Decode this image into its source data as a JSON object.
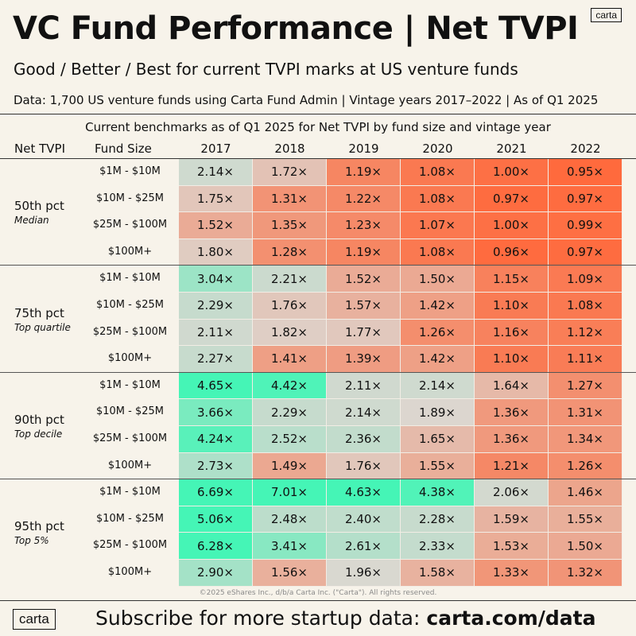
{
  "brand": {
    "logo_text": "carta"
  },
  "header": {
    "title": "VC Fund Performance | Net TVPI",
    "subtitle": "Good / Better / Best for current TVPI marks at US venture funds",
    "source": "Data: 1,700 US venture funds using Carta Fund Admin  |  Vintage years 2017–2022  |  As of Q1 2025"
  },
  "chart_data": {
    "type": "table",
    "title": "Current benchmarks as of Q1 2025 for Net TVPI by fund size and vintage year",
    "columns": {
      "net_tvpi": "Net TVPI",
      "fund_size": "Fund Size"
    },
    "years": [
      "2017",
      "2018",
      "2019",
      "2020",
      "2021",
      "2022"
    ],
    "fund_sizes": [
      "$1M - $10M",
      "$10M - $25M",
      "$25M - $100M",
      "$100M+"
    ],
    "color_scale": {
      "low": "#ff6a3d",
      "mid": "#dcd7d1",
      "high": "#45f5b6"
    },
    "sections": [
      {
        "label": "50th pct",
        "description": "Median",
        "rows": [
          {
            "fund_size": "$1M - $10M",
            "values": [
              "2.14×",
              "1.72×",
              "1.19×",
              "1.08×",
              "1.00×",
              "0.95×"
            ]
          },
          {
            "fund_size": "$10M - $25M",
            "values": [
              "1.75×",
              "1.31×",
              "1.22×",
              "1.08×",
              "0.97×",
              "0.97×"
            ]
          },
          {
            "fund_size": "$25M - $100M",
            "values": [
              "1.52×",
              "1.35×",
              "1.23×",
              "1.07×",
              "1.00×",
              "0.99×"
            ]
          },
          {
            "fund_size": "$100M+",
            "values": [
              "1.80×",
              "1.28×",
              "1.19×",
              "1.08×",
              "0.96×",
              "0.97×"
            ]
          }
        ]
      },
      {
        "label": "75th pct",
        "description": "Top quartile",
        "rows": [
          {
            "fund_size": "$1M - $10M",
            "values": [
              "3.04×",
              "2.21×",
              "1.52×",
              "1.50×",
              "1.15×",
              "1.09×"
            ]
          },
          {
            "fund_size": "$10M - $25M",
            "values": [
              "2.29×",
              "1.76×",
              "1.57×",
              "1.42×",
              "1.10×",
              "1.08×"
            ]
          },
          {
            "fund_size": "$25M - $100M",
            "values": [
              "2.11×",
              "1.82×",
              "1.77×",
              "1.26×",
              "1.16×",
              "1.12×"
            ]
          },
          {
            "fund_size": "$100M+",
            "values": [
              "2.27×",
              "1.41×",
              "1.39×",
              "1.42×",
              "1.10×",
              "1.11×"
            ]
          }
        ]
      },
      {
        "label": "90th pct",
        "description": "Top decile",
        "rows": [
          {
            "fund_size": "$1M - $10M",
            "values": [
              "4.65×",
              "4.42×",
              "2.11×",
              "2.14×",
              "1.64×",
              "1.27×"
            ]
          },
          {
            "fund_size": "$10M - $25M",
            "values": [
              "3.66×",
              "2.29×",
              "2.14×",
              "1.89×",
              "1.36×",
              "1.31×"
            ]
          },
          {
            "fund_size": "$25M - $100M",
            "values": [
              "4.24×",
              "2.52×",
              "2.36×",
              "1.65×",
              "1.36×",
              "1.34×"
            ]
          },
          {
            "fund_size": "$100M+",
            "values": [
              "2.73×",
              "1.49×",
              "1.76×",
              "1.55×",
              "1.21×",
              "1.26×"
            ]
          }
        ]
      },
      {
        "label": "95th pct",
        "description": "Top 5%",
        "rows": [
          {
            "fund_size": "$1M - $10M",
            "values": [
              "6.69×",
              "7.01×",
              "4.63×",
              "4.38×",
              "2.06×",
              "1.46×"
            ]
          },
          {
            "fund_size": "$10M - $25M",
            "values": [
              "5.06×",
              "2.48×",
              "2.40×",
              "2.28×",
              "1.59×",
              "1.55×"
            ]
          },
          {
            "fund_size": "$25M - $100M",
            "values": [
              "6.28×",
              "3.41×",
              "2.61×",
              "2.33×",
              "1.53×",
              "1.50×"
            ]
          },
          {
            "fund_size": "$100M+",
            "values": [
              "2.90×",
              "1.56×",
              "1.96×",
              "1.58×",
              "1.33×",
              "1.32×"
            ]
          }
        ]
      }
    ]
  },
  "footer": {
    "copyright": "©2025 eShares Inc., d/b/a Carta Inc. (\"Carta\"). All rights reserved.",
    "subscribe_text": "Subscribe for more startup data: ",
    "subscribe_link": "carta.com/data"
  }
}
